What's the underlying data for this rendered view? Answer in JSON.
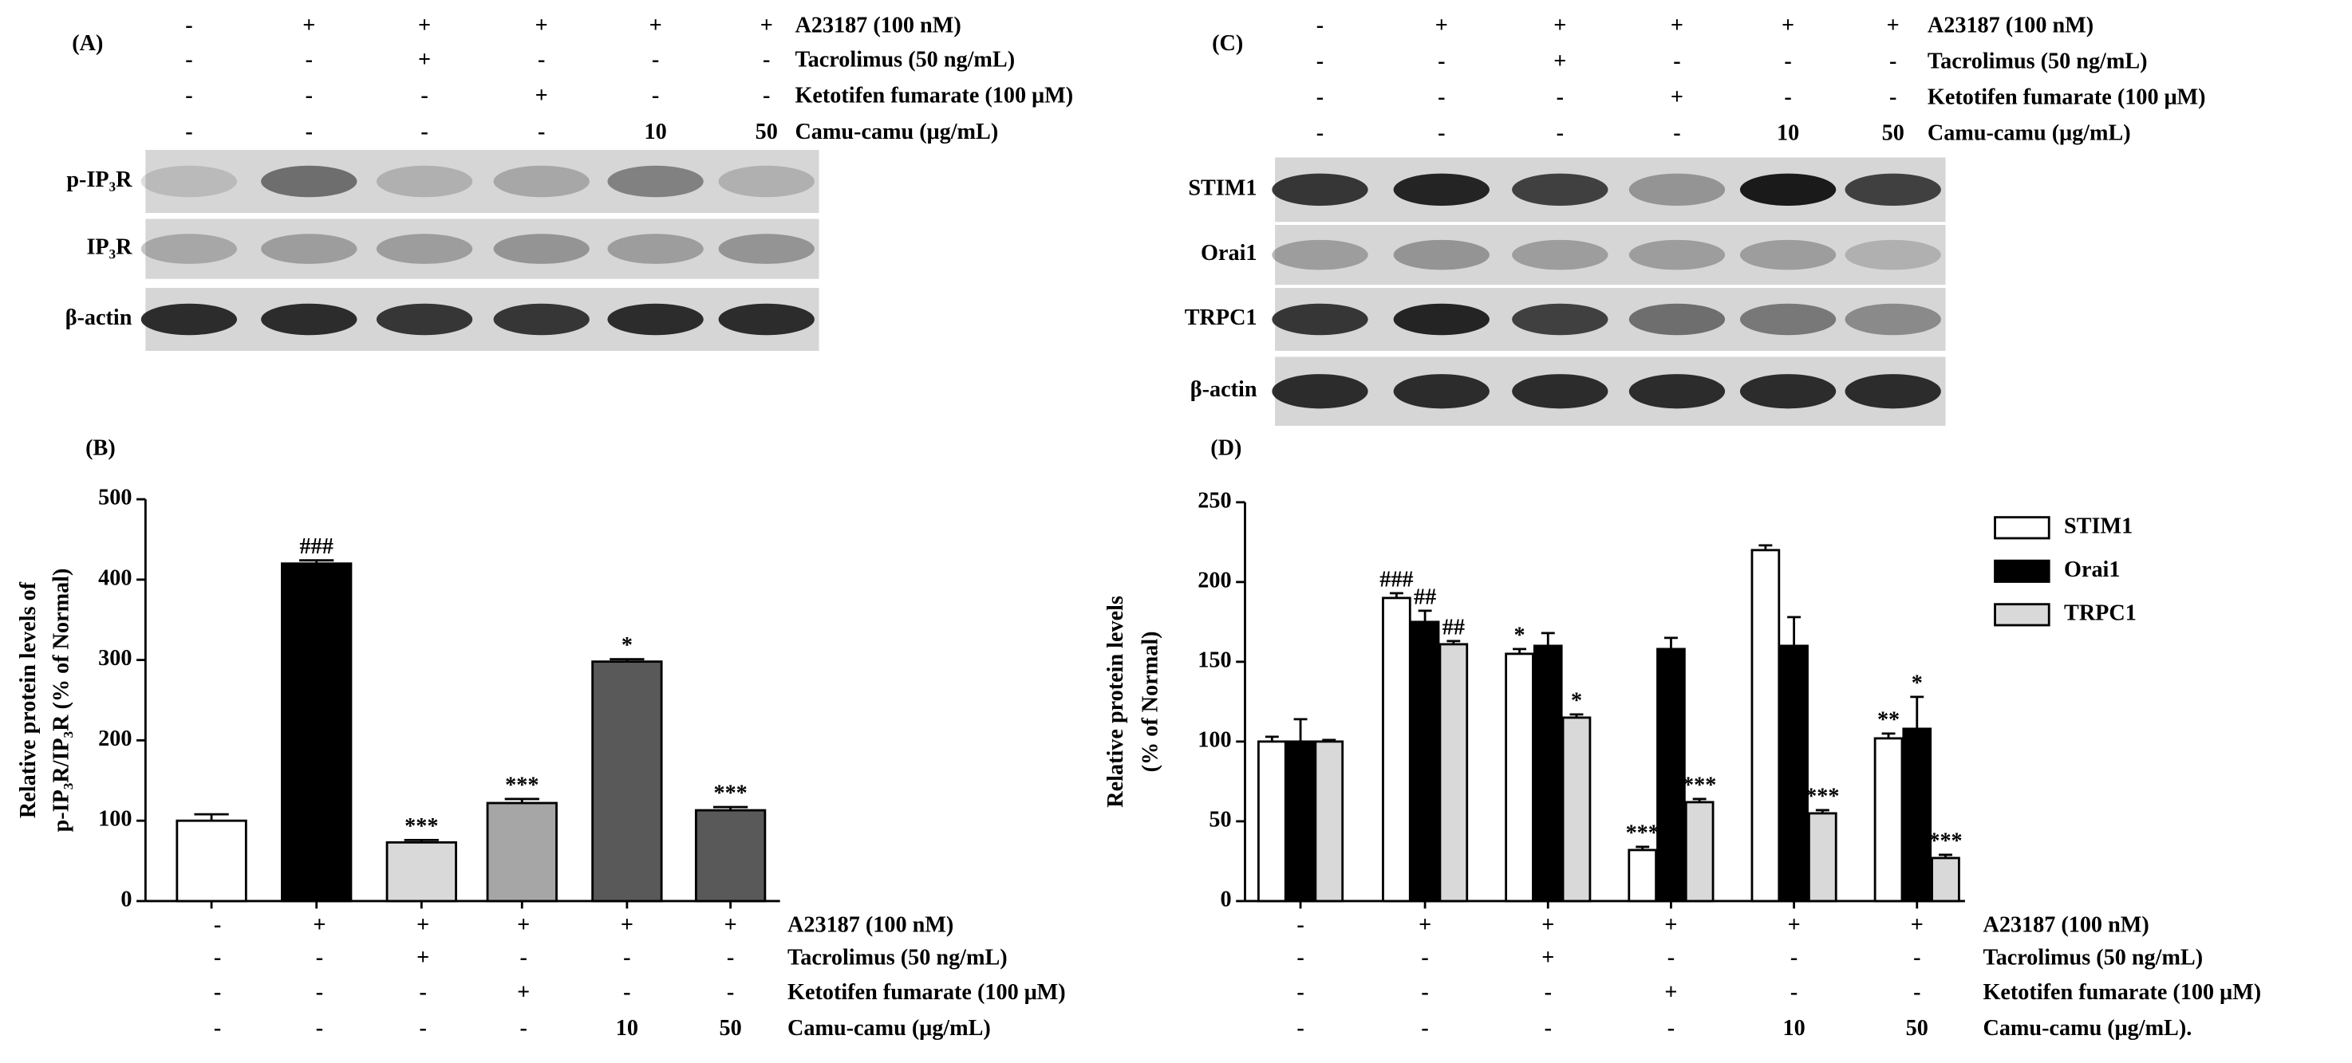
{
  "blots": [
    {
      "label": "(A)",
      "conditions": [
        {
          "name": "A23187 (100 nM)",
          "values": [
            "-",
            "+",
            "+",
            "+",
            "+",
            "+"
          ]
        },
        {
          "name": "Tacrolimus  (50 ng/mL)",
          "values": [
            "-",
            "-",
            "+",
            "-",
            "-",
            "-"
          ]
        },
        {
          "name": "Ketotifen fumarate (100 μM)",
          "values": [
            "-",
            "-",
            "-",
            "+",
            "-",
            "-"
          ]
        },
        {
          "name": "Camu-camu (μg/mL)",
          "values": [
            "-",
            "-",
            "-",
            "-",
            "10",
            "50"
          ]
        }
      ],
      "bands": [
        "p-IP₃R",
        "IP₃R",
        "β-actin"
      ]
    },
    {
      "label": "(C)",
      "conditions": [
        {
          "name": "A23187 (100 nM)",
          "values": [
            "-",
            "+",
            "+",
            "+",
            "+",
            "+"
          ]
        },
        {
          "name": "Tacrolimus  (50 ng/mL)",
          "values": [
            "-",
            "-",
            "+",
            "-",
            "-",
            "-"
          ]
        },
        {
          "name": "Ketotifen fumarate (100 μM)",
          "values": [
            "-",
            "-",
            "-",
            "+",
            "-",
            "-"
          ]
        },
        {
          "name": "Camu-camu (μg/mL)",
          "values": [
            "-",
            "-",
            "-",
            "-",
            "10",
            "50"
          ]
        }
      ],
      "bands": [
        "STIM1",
        "Orai1",
        "TRPC1",
        "β-actin"
      ]
    }
  ],
  "chart_data": [
    {
      "type": "bar",
      "label": "(B)",
      "ylabel": [
        "Relative protein levels of",
        "p-IP₃R/IP₃R (% of Normal)"
      ],
      "values": [
        100,
        420,
        73,
        122,
        298,
        113
      ],
      "errors": [
        8,
        4,
        3,
        5,
        3,
        4
      ],
      "annotations": [
        null,
        "###",
        "***",
        "***",
        "*",
        "***"
      ],
      "colors": [
        "#ffffff",
        "#000000",
        "#d9d9d9",
        "#a6a6a6",
        "#595959",
        "#595959"
      ],
      "ylim": [
        0,
        500
      ],
      "yticks": [
        0,
        100,
        200,
        300,
        400,
        500
      ],
      "conditions": [
        {
          "name": "A23187 (100 nM)",
          "values": [
            "-",
            "+",
            "+",
            "+",
            "+",
            "+"
          ]
        },
        {
          "name": "Tacrolimus (50 ng/mL)",
          "values": [
            "-",
            "-",
            "+",
            "-",
            "-",
            "-"
          ]
        },
        {
          "name": "Ketotifen fumarate (100 μM)",
          "values": [
            "-",
            "-",
            "-",
            "+",
            "-",
            "-"
          ]
        },
        {
          "name": "Camu-camu (μg/mL)",
          "values": [
            "-",
            "-",
            "-",
            "-",
            "10",
            "50"
          ]
        }
      ]
    },
    {
      "type": "grouped-bar",
      "label": "(D)",
      "ylabel": [
        "Relative protein levels",
        "(% of Normal)"
      ],
      "series": [
        {
          "name": "STIM1",
          "color": "#ffffff",
          "values": [
            100,
            190,
            155,
            32,
            220,
            102
          ],
          "errors": [
            3,
            3,
            3,
            2,
            3,
            3
          ],
          "annotations": [
            null,
            "###",
            "*",
            "***",
            null,
            "**"
          ]
        },
        {
          "name": "Orai1",
          "color": "#000000",
          "values": [
            100,
            175,
            160,
            158,
            160,
            108
          ],
          "errors": [
            14,
            7,
            8,
            7,
            18,
            20
          ],
          "annotations": [
            null,
            "##",
            null,
            null,
            null,
            "*"
          ]
        },
        {
          "name": "TRPC1",
          "color": "#d9d9d9",
          "values": [
            100,
            161,
            115,
            62,
            55,
            27
          ],
          "errors": [
            1,
            2,
            2,
            2,
            2,
            2
          ],
          "annotations": [
            null,
            "##",
            "*",
            "***",
            "***",
            "***"
          ]
        }
      ],
      "ylim": [
        0,
        250
      ],
      "yticks": [
        0,
        50,
        100,
        150,
        200,
        250
      ],
      "legend": "top-right",
      "conditions": [
        {
          "name": "A23187 (100 nM)",
          "values": [
            "-",
            "+",
            "+",
            "+",
            "+",
            "+"
          ]
        },
        {
          "name": "Tacrolimus (50 ng/mL)",
          "values": [
            "-",
            "-",
            "+",
            "-",
            "-",
            "-"
          ]
        },
        {
          "name": "Ketotifen fumarate (100 μM)",
          "values": [
            "-",
            "-",
            "-",
            "+",
            "-",
            "-"
          ]
        },
        {
          "name": "Camu-camu (μg/mL).",
          "values": [
            "-",
            "-",
            "-",
            "-",
            "10",
            "50"
          ]
        }
      ]
    }
  ]
}
